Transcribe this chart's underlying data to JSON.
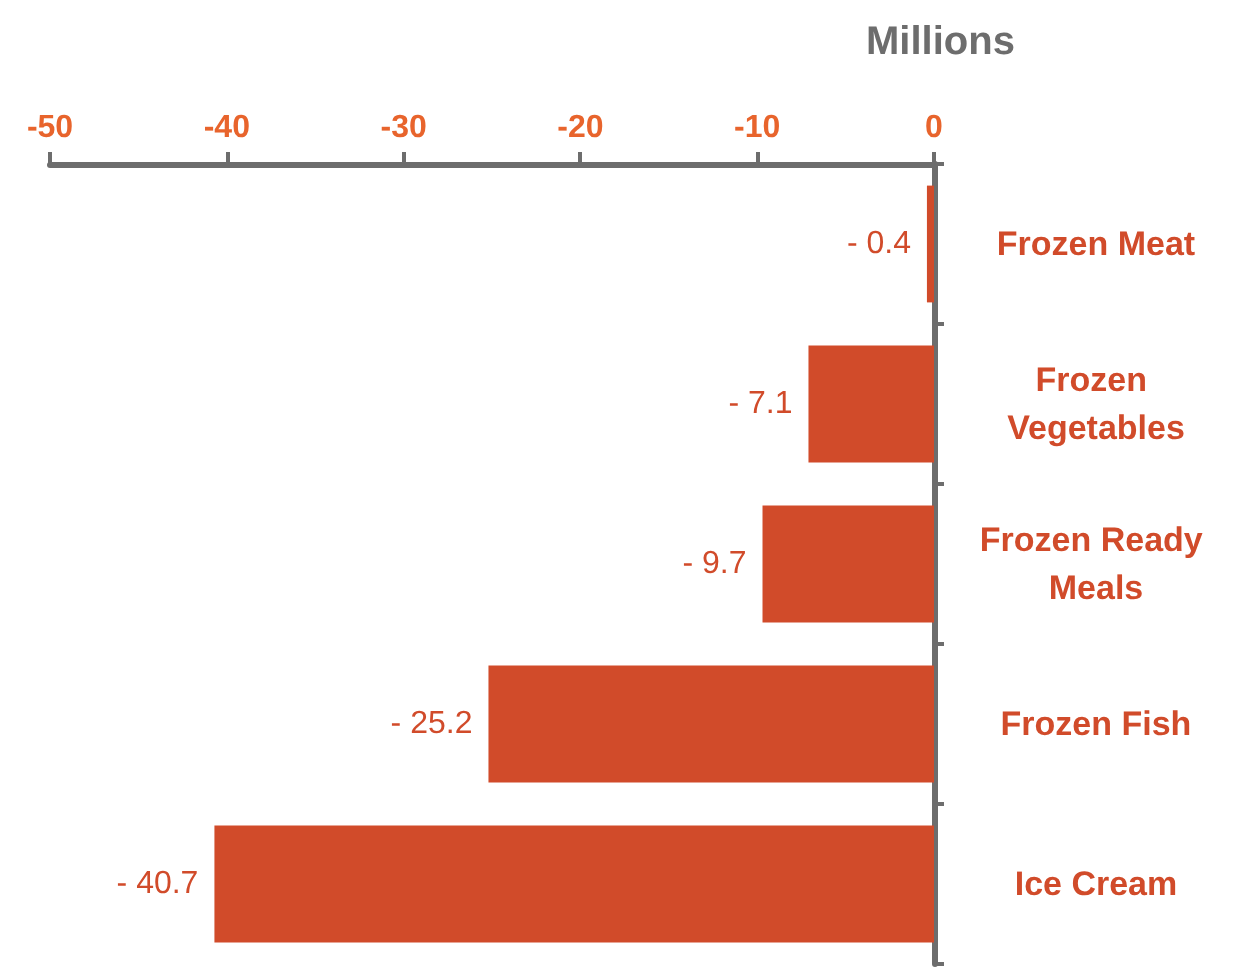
{
  "chart_data": {
    "type": "bar",
    "orientation": "horizontal",
    "xlabel": "Millions",
    "categories": [
      "Frozen Meat",
      "Frozen Vegetables",
      "Frozen Ready Meals",
      "Frozen Fish",
      "Ice Cream"
    ],
    "values": [
      -0.4,
      -7.1,
      -9.7,
      -25.2,
      -40.7
    ],
    "value_labels": [
      "- 0.4",
      "- 7.1",
      "- 9.7",
      "- 25.2",
      "- 40.7"
    ],
    "color": "#d14b2a",
    "xlim": [
      -50,
      0
    ],
    "xticks": [
      -50,
      -40,
      -30,
      -20,
      -10,
      0
    ],
    "grid": false
  }
}
